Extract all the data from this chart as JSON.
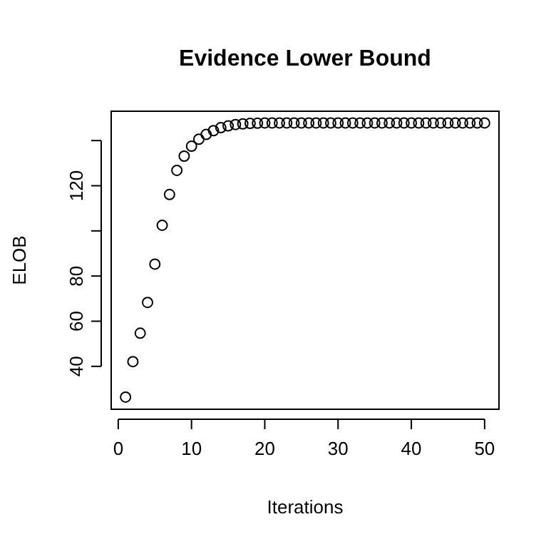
{
  "chart_data": {
    "type": "scatter",
    "title": "Evidence Lower Bound",
    "xlabel": "Iterations",
    "ylabel": "ELOB",
    "x": [
      1,
      2,
      3,
      4,
      5,
      6,
      7,
      8,
      9,
      10,
      11,
      12,
      13,
      14,
      15,
      16,
      17,
      18,
      19,
      20,
      21,
      22,
      23,
      24,
      25,
      26,
      27,
      28,
      29,
      30,
      31,
      32,
      33,
      34,
      35,
      36,
      37,
      38,
      39,
      40,
      41,
      42,
      43,
      44,
      45,
      46,
      47,
      48,
      49,
      50
    ],
    "values": [
      26.4,
      42.1,
      54.7,
      68.3,
      85.3,
      102.5,
      116.1,
      126.8,
      133.1,
      137.5,
      140.6,
      142.7,
      144.4,
      145.7,
      146.5,
      147.1,
      147.4,
      147.6,
      147.7,
      147.8,
      147.8,
      147.8,
      147.8,
      147.8,
      147.8,
      147.8,
      147.8,
      147.8,
      147.8,
      147.8,
      147.8,
      147.8,
      147.8,
      147.8,
      147.8,
      147.8,
      147.8,
      147.8,
      147.8,
      147.8,
      147.8,
      147.8,
      147.8,
      147.8,
      147.8,
      147.8,
      147.8,
      147.8,
      147.8,
      147.8
    ],
    "color": "#000000",
    "marker": "circle",
    "grid": false,
    "xlim": [
      -0.96,
      51.96
    ],
    "xticks": [
      0,
      10,
      20,
      30,
      40,
      50
    ],
    "ylim": [
      21,
      153
    ],
    "yticks": [
      40,
      60,
      80,
      {
        "value": 100,
        "label": null
      },
      120,
      {
        "value": 140,
        "label": null
      }
    ]
  }
}
